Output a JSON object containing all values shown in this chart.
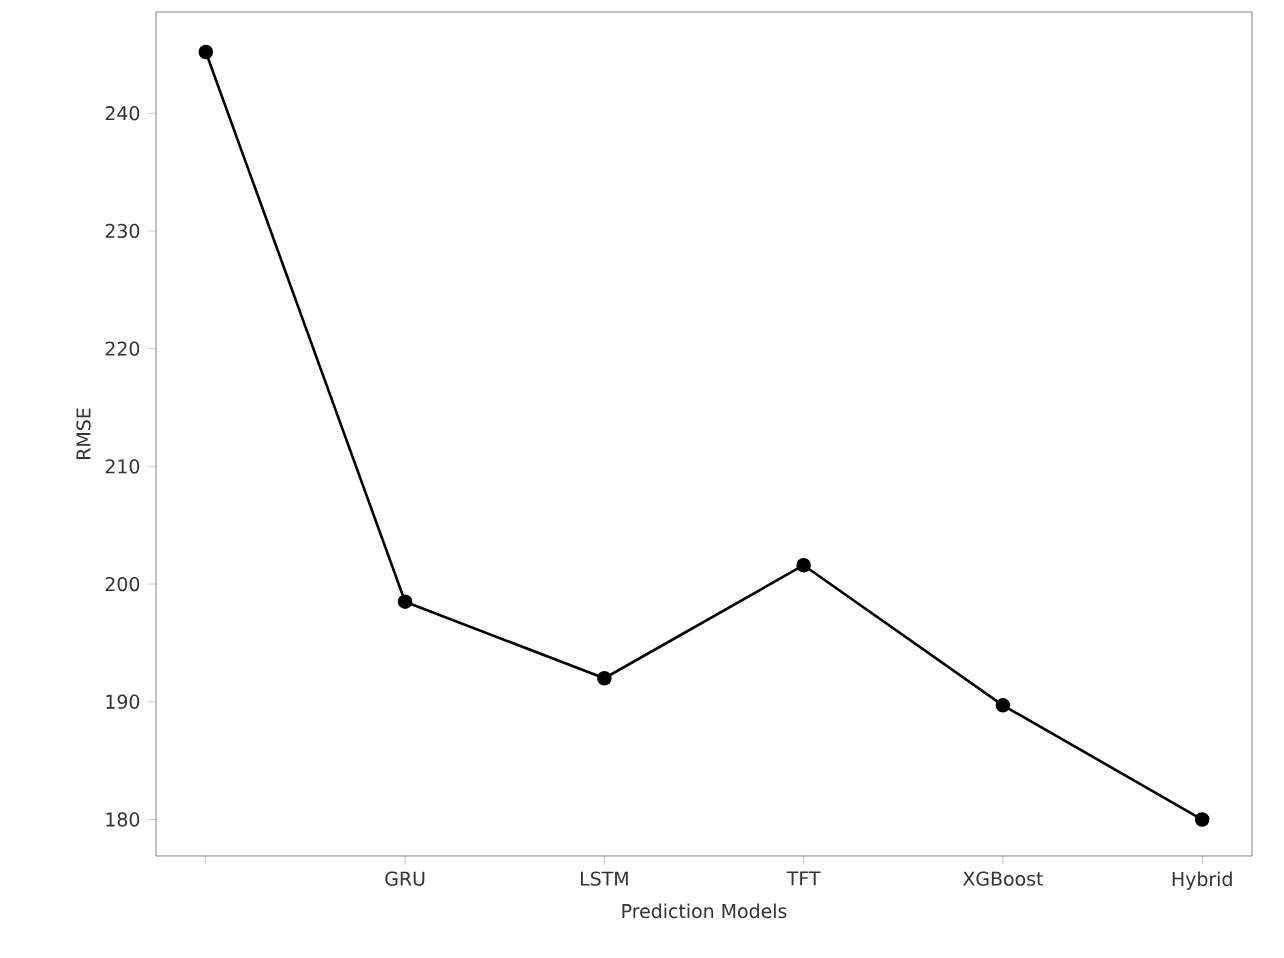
{
  "chart_data": {
    "type": "line",
    "xlabel": "Prediction Models",
    "ylabel": "RMSE",
    "categories": [
      null,
      "GRU",
      "LSTM",
      "TFT",
      "XGBoost",
      "Hybrid"
    ],
    "values": [
      245.2,
      198.5,
      192.0,
      201.6,
      189.7,
      180.0
    ],
    "color": "#000000",
    "marker": "circle",
    "line_style": "solid",
    "ylim": [
      176.9,
      248.6
    ],
    "yticks": [
      180,
      190,
      200,
      210,
      220,
      230,
      240
    ],
    "grid": false
  }
}
